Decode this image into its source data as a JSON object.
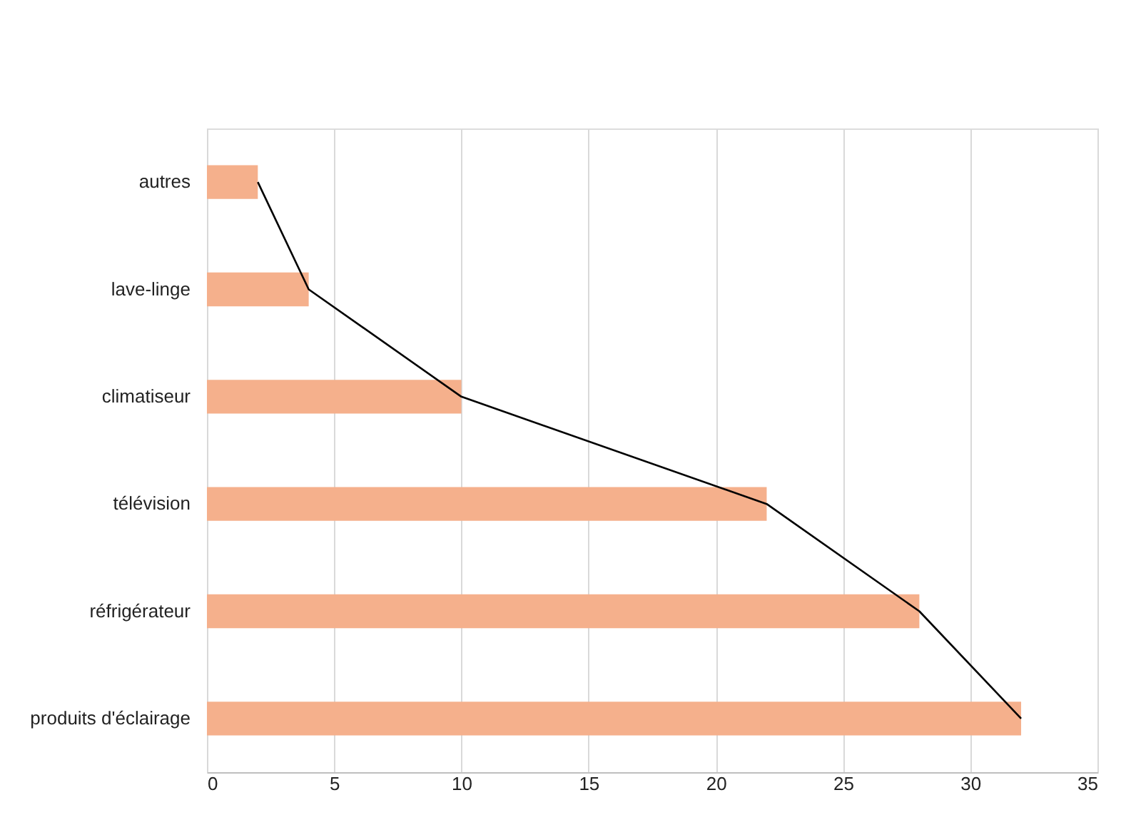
{
  "chart_data": {
    "type": "bar",
    "orientation": "horizontal",
    "categories": [
      "autres",
      "lave-linge",
      "climatiseur",
      "télévision",
      "réfrigérateur",
      "produits d'éclairage"
    ],
    "series": [
      {
        "color": "#f5b08c",
        "values": [
          2,
          4,
          10,
          22,
          28,
          32
        ]
      },
      {
        "type": "line",
        "color": "#000000",
        "values": [
          2,
          4,
          10,
          22,
          28,
          32
        ]
      }
    ],
    "xlim": [
      0,
      35
    ],
    "xticks": [
      0,
      5,
      10,
      15,
      20,
      25,
      30,
      35
    ],
    "grid": "x"
  }
}
